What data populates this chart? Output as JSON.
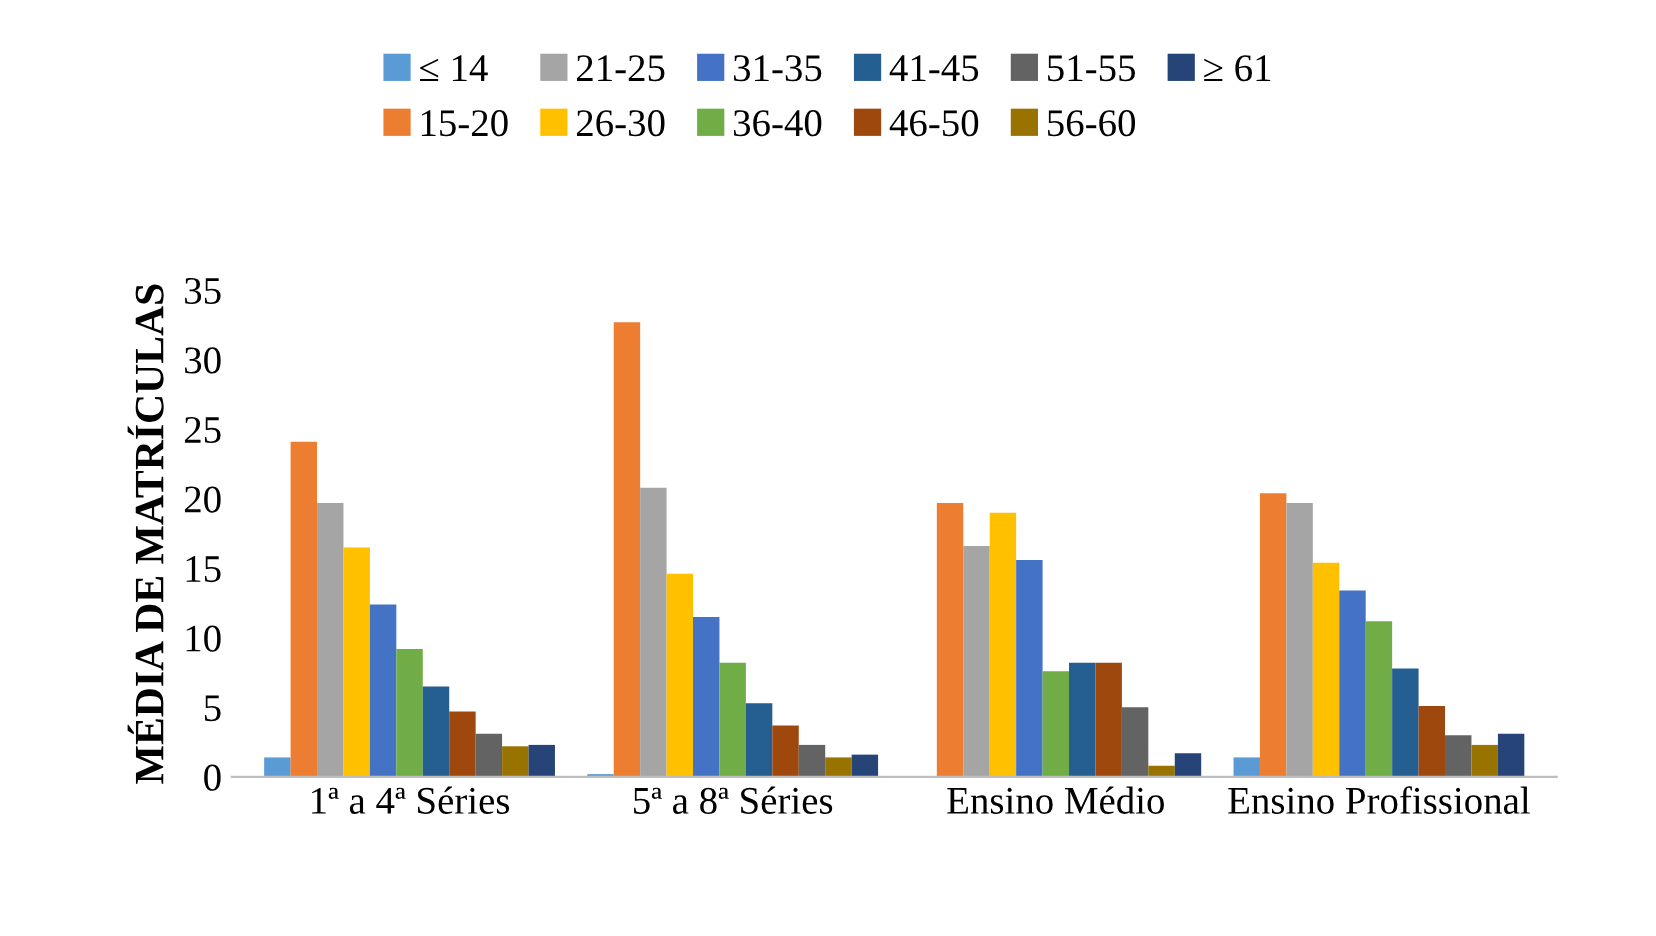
{
  "chart_data": {
    "type": "bar",
    "ylabel": "MÉDIA DE MATRÍCULAS",
    "categories": [
      "1ª a 4ª Séries",
      "5ª a 8ª Séries",
      "Ensino Médio",
      "Ensino Profissional"
    ],
    "series": [
      {
        "name": "≤ 14",
        "color": "#5b9bd5",
        "values": [
          1.4,
          0.2,
          null,
          1.4
        ]
      },
      {
        "name": "15-20",
        "color": "#ed7d31",
        "values": [
          24.1,
          32.7,
          19.7,
          20.4
        ]
      },
      {
        "name": "21-25",
        "color": "#a5a5a5",
        "values": [
          19.7,
          20.8,
          16.6,
          19.7
        ]
      },
      {
        "name": "26-30",
        "color": "#ffc000",
        "values": [
          16.5,
          14.6,
          19.0,
          15.4
        ]
      },
      {
        "name": "31-35",
        "color": "#4472c4",
        "values": [
          12.4,
          11.5,
          15.6,
          13.4
        ]
      },
      {
        "name": "36-40",
        "color": "#70ad47",
        "values": [
          9.2,
          8.2,
          7.6,
          11.2
        ]
      },
      {
        "name": "41-45",
        "color": "#255e91",
        "values": [
          6.5,
          5.3,
          8.2,
          7.8
        ]
      },
      {
        "name": "46-50",
        "color": "#9e480e",
        "values": [
          4.7,
          3.7,
          8.2,
          5.1
        ]
      },
      {
        "name": "51-55",
        "color": "#636363",
        "values": [
          3.1,
          2.3,
          5.0,
          3.0
        ]
      },
      {
        "name": "56-60",
        "color": "#997300",
        "values": [
          2.2,
          1.4,
          0.8,
          2.3
        ]
      },
      {
        "name": "≥ 61",
        "color": "#264478",
        "values": [
          2.3,
          1.6,
          1.7,
          3.1
        ]
      }
    ],
    "ylim": [
      0,
      35
    ],
    "yticks": [
      0,
      5,
      10,
      15,
      20,
      25,
      30,
      35
    ],
    "grid": false,
    "legend": "top"
  }
}
